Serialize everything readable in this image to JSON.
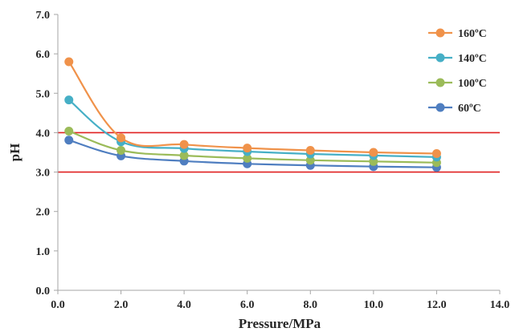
{
  "chart_data": {
    "type": "line",
    "title": "",
    "xlabel": "Pressure/MPa",
    "ylabel": "pH",
    "xlim": [
      0,
      14
    ],
    "ylim": [
      0,
      7
    ],
    "xticks": [
      "0.0",
      "2.0",
      "4.0",
      "6.0",
      "8.0",
      "10.0",
      "12.0",
      "14.0"
    ],
    "yticks": [
      "0.0",
      "1.0",
      "2.0",
      "3.0",
      "4.0",
      "5.0",
      "6.0",
      "7.0"
    ],
    "grid": false,
    "legend_position": "top-right",
    "x": [
      0.35,
      2,
      4,
      6,
      8,
      10,
      12
    ],
    "series": [
      {
        "name": "160ºC",
        "color": "#F0924A",
        "values": [
          5.8,
          3.87,
          3.7,
          3.61,
          3.55,
          3.5,
          3.47
        ]
      },
      {
        "name": "140ºC",
        "color": "#46AFC6",
        "values": [
          4.83,
          3.77,
          3.6,
          3.52,
          3.46,
          3.42,
          3.38
        ]
      },
      {
        "name": "100ºC",
        "color": "#9BBB59",
        "values": [
          4.04,
          3.55,
          3.42,
          3.35,
          3.3,
          3.27,
          3.24
        ]
      },
      {
        "name": "60ºC",
        "color": "#4F7EC0",
        "values": [
          3.81,
          3.41,
          3.28,
          3.21,
          3.17,
          3.14,
          3.12
        ]
      }
    ],
    "reference_lines": [
      {
        "y": 4.0,
        "color": "#E02020"
      },
      {
        "y": 3.0,
        "color": "#E02020"
      }
    ]
  }
}
